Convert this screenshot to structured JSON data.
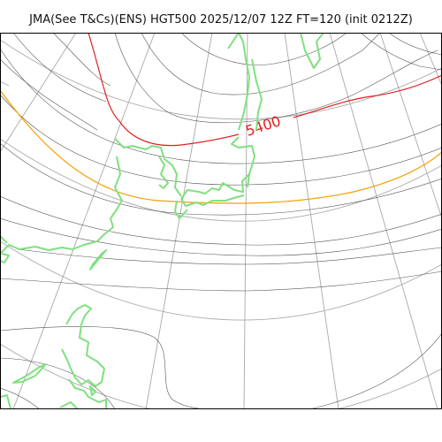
{
  "title": "JMA(See T&Cs)(ENS) HGT500 2025/12/07 12Z FT=120 (init 0212Z)",
  "map": {
    "contour_label": "5400",
    "colors": {
      "contour": "#555555",
      "contour_5400": "#e02020",
      "contour_5700": "#f5a000",
      "coastline": "#80e080",
      "graticule": "#a8a8a8",
      "frame": "#000000"
    }
  }
}
